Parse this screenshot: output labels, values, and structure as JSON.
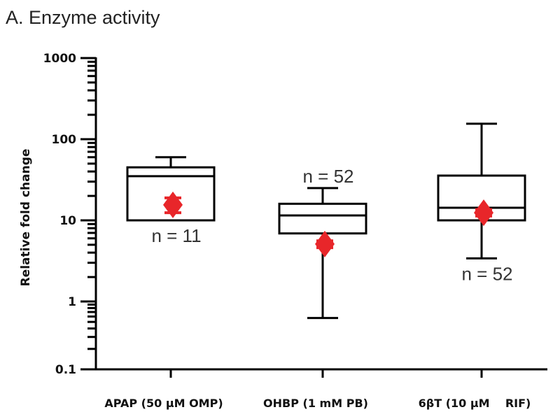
{
  "chart_data": {
    "type": "box",
    "title": "A. Enzyme activity",
    "xlabel": "",
    "ylabel": "Relative fold change",
    "yscale": "log",
    "ylim": [
      0.1,
      1000
    ],
    "yticks": [
      "0.1",
      "1",
      "10",
      "100",
      "1000"
    ],
    "grid": false,
    "colors": {
      "box": "#000000",
      "mean": "#e8262a"
    },
    "categories": [
      "APAP (50 µM OMP)",
      "OHBP (1 mM PB)",
      "6βT (10 µM    RIF)"
    ],
    "boxes": [
      {
        "min": 10,
        "q1": 10,
        "median": 35,
        "q3": 45,
        "max": 60,
        "mean": 15.5,
        "mean_err": [
          12.4,
          18.9
        ],
        "n_label": "n = 11",
        "n_label_position": "below"
      },
      {
        "min": 0.57,
        "q1": 6.9,
        "median": 11.5,
        "q3": 16,
        "max": 25,
        "mean": 5.1,
        "mean_err": [
          4.6,
          5.6
        ],
        "n_label": "n = 52",
        "n_label_position": "above"
      },
      {
        "min": 3.4,
        "q1": 10,
        "median": 14.3,
        "q3": 35.6,
        "max": 155,
        "mean": 12.4,
        "mean_err": [
          11.3,
          13.6
        ],
        "n_label": "n = 52",
        "n_label_position": "below"
      }
    ]
  }
}
